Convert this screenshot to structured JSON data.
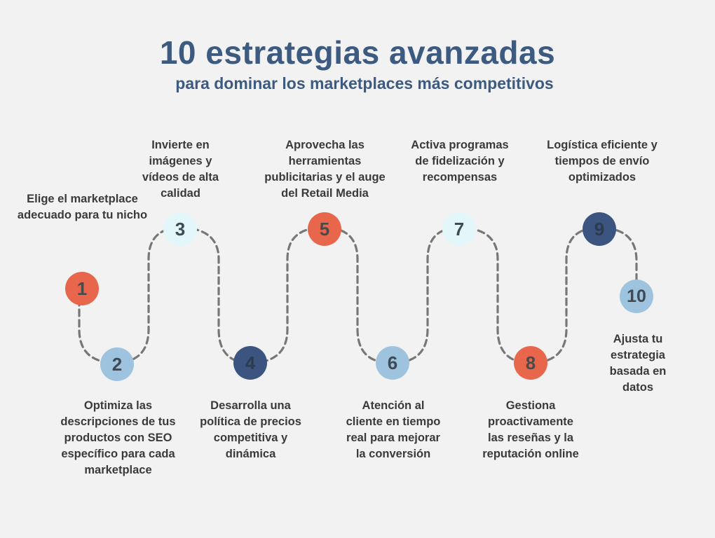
{
  "header": {
    "title": "10 estrategias avanzadas",
    "subtitle": "para dominar los marketplaces más competitivos"
  },
  "steps": [
    {
      "number": "1",
      "text": "Elige el marketplace adecuado para tu nicho"
    },
    {
      "number": "2",
      "text": "Optimiza las descripciones de tus productos con SEO específico para cada marketplace"
    },
    {
      "number": "3",
      "text": "Invierte en imágenes y vídeos de alta calidad"
    },
    {
      "number": "4",
      "text": "Desarrolla una política de precios competitiva y dinámica"
    },
    {
      "number": "5",
      "text": "Aprovecha las herramientas publicitarias y el auge del Retail Media"
    },
    {
      "number": "6",
      "text": "Atención al cliente en tiempo real para mejorar la conversión"
    },
    {
      "number": "7",
      "text": "Activa programas de fidelización y recompensas"
    },
    {
      "number": "8",
      "text": "Gestiona proactivamente las reseñas y la reputación online"
    },
    {
      "number": "9",
      "text": "Logística eficiente y tiempos de envío optimizados"
    },
    {
      "number": "10",
      "text": "Ajusta tu estrategia basada en datos"
    }
  ],
  "colors": {
    "title": "#3d5a80",
    "red": "#e8664b",
    "light_blue": "#9dc3de",
    "pale": "#e3f6fa",
    "navy": "#3b5580",
    "path": "#777777"
  }
}
